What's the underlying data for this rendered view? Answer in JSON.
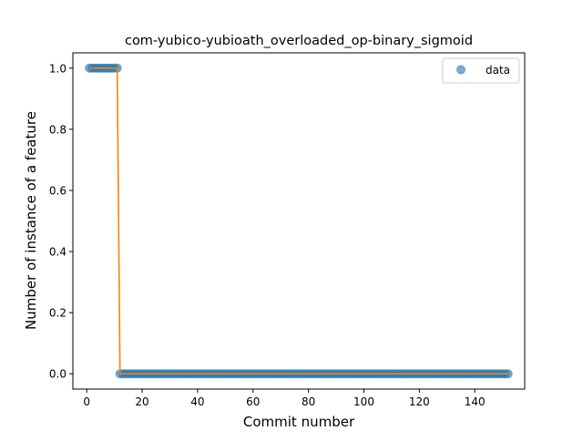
{
  "chart_data": {
    "type": "scatter",
    "title": "com-yubico-yubioath_overloaded_op-binary_sigmoid",
    "xlabel": "Commit number",
    "ylabel": "Number of instance of a feature",
    "xlim": [
      -5,
      158
    ],
    "ylim": [
      -0.05,
      1.05
    ],
    "xticks": [
      0,
      20,
      40,
      60,
      80,
      100,
      120,
      140
    ],
    "yticks": [
      0.0,
      0.2,
      0.4,
      0.6,
      0.8,
      1.0
    ],
    "xtick_labels": [
      "0",
      "20",
      "40",
      "60",
      "80",
      "100",
      "120",
      "140"
    ],
    "ytick_labels": [
      "0.0",
      "0.2",
      "0.4",
      "0.6",
      "0.8",
      "1.0"
    ],
    "legend": {
      "position": "top-right",
      "entries": [
        "data"
      ]
    },
    "colors": {
      "points": "#1f77b4",
      "fit": "#ff7f0e"
    },
    "series": [
      {
        "name": "data",
        "kind": "points",
        "x_start": 1,
        "x_end": 152,
        "step_x": 11.5,
        "before": 1,
        "after": 0
      },
      {
        "kind": "line",
        "x": [
          1,
          11,
          12,
          152
        ],
        "y": [
          1,
          1,
          0,
          0
        ]
      }
    ]
  }
}
